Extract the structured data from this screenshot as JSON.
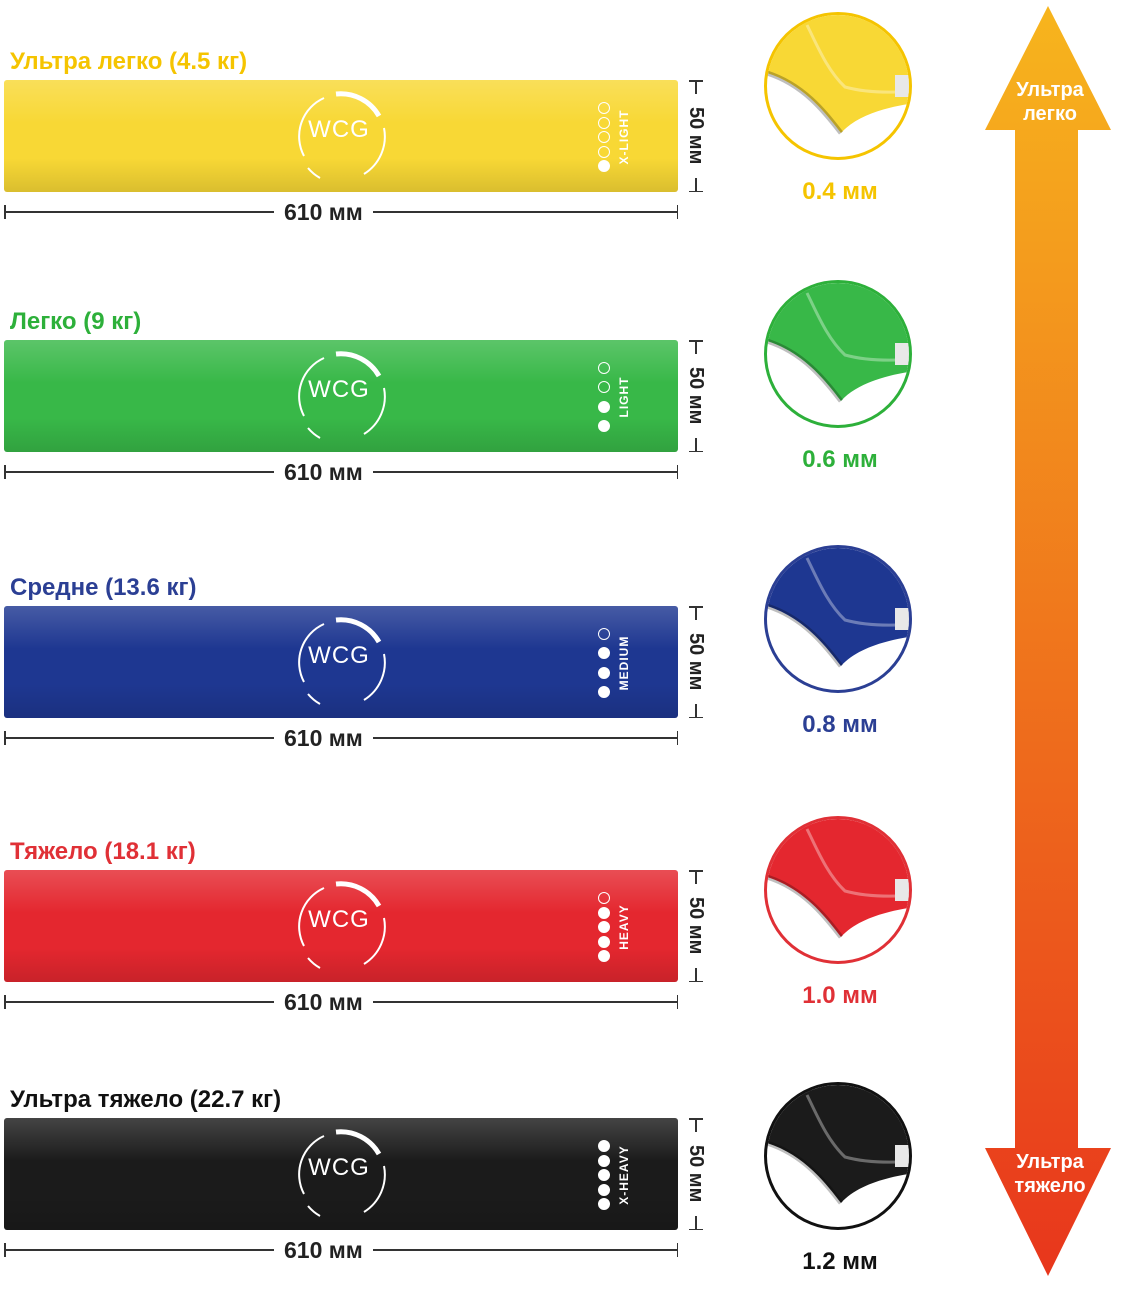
{
  "bands": [
    {
      "title": "Ультра легко (4.5 кг)",
      "title_color": "#f5c400",
      "band_color": "#f8d835",
      "border_color": "#f5c400",
      "logo": "WCG",
      "level_label": "X-LIGHT",
      "filled": 1,
      "total": 5,
      "width_label": "610 мм",
      "height_label": "50 мм",
      "thickness": "0.4 мм"
    },
    {
      "title": "Легко (9 кг)",
      "title_color": "#2db03a",
      "band_color": "#38b848",
      "border_color": "#2db03a",
      "logo": "WCG",
      "level_label": "LIGHT",
      "filled": 2,
      "total": 4,
      "width_label": "610 мм",
      "height_label": "50 мм",
      "thickness": "0.6 мм"
    },
    {
      "title": "Средне (13.6 кг)",
      "title_color": "#2b3f94",
      "band_color": "#1e3791",
      "border_color": "#2b3f94",
      "logo": "WCG",
      "level_label": "MEDIUM",
      "filled": 3,
      "total": 4,
      "width_label": "610 мм",
      "height_label": "50 мм",
      "thickness": "0.8 мм"
    },
    {
      "title": "Тяжело (18.1 кг)",
      "title_color": "#e03036",
      "band_color": "#e4272f",
      "border_color": "#e03036",
      "logo": "WCG",
      "level_label": "HEAVY",
      "filled": 4,
      "total": 5,
      "width_label": "610 мм",
      "height_label": "50 мм",
      "thickness": "1.0 мм"
    },
    {
      "title": "Ультра тяжело (22.7 кг)",
      "title_color": "#111111",
      "band_color": "#1b1b1b",
      "border_color": "#111111",
      "logo": "WCG",
      "level_label": "X-HEAVY",
      "filled": 5,
      "total": 5,
      "width_label": "610 мм",
      "height_label": "50 мм",
      "thickness": "1.2 мм"
    }
  ],
  "scale_arrow": {
    "top_label_line1": "Ультра",
    "top_label_line2": "легко",
    "bottom_label_line1": "Ультра",
    "bottom_label_line2": "тяжело",
    "color_top": "#f7b51d",
    "color_bottom": "#e8361c"
  }
}
